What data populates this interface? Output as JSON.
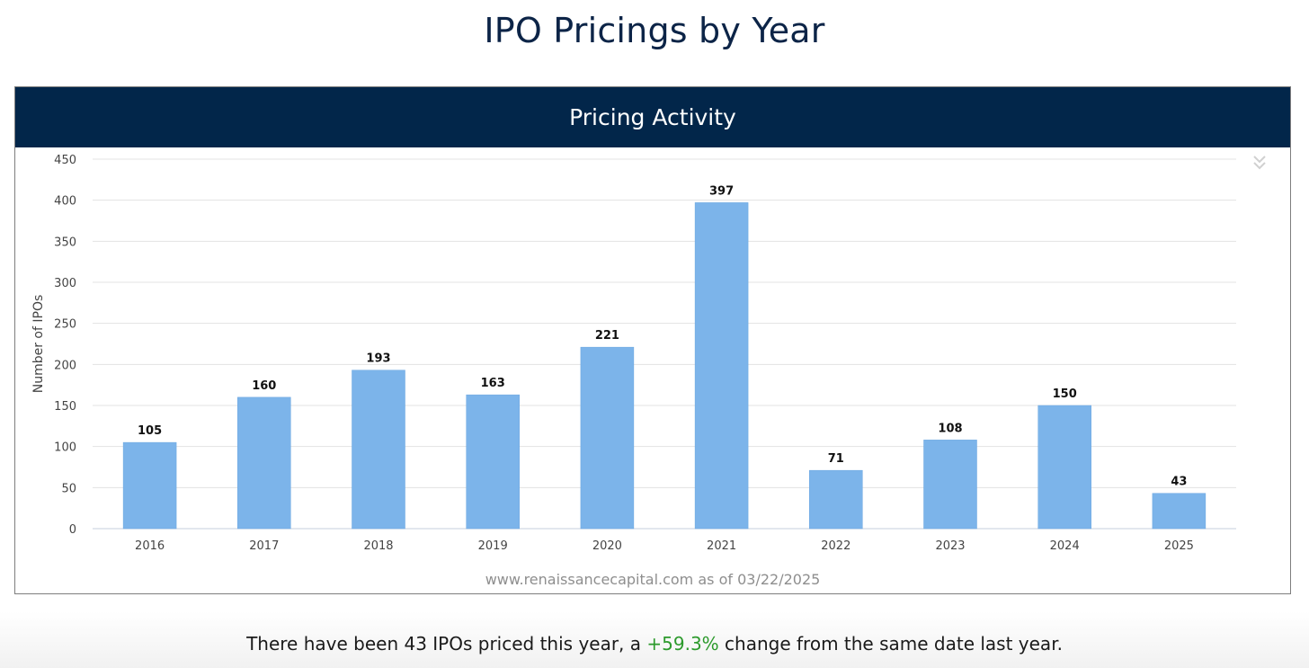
{
  "page": {
    "title": "IPO Pricings by Year"
  },
  "chart_header": {
    "title": "Pricing Activity"
  },
  "chart_data": {
    "type": "bar",
    "title": "Pricing Activity",
    "categories": [
      "2016",
      "2017",
      "2018",
      "2019",
      "2020",
      "2021",
      "2022",
      "2023",
      "2024",
      "2025"
    ],
    "values": [
      105,
      160,
      193,
      163,
      221,
      397,
      71,
      108,
      150,
      43
    ],
    "data_labels": [
      "105",
      "160",
      "193",
      "163",
      "221",
      "397",
      "71",
      "108",
      "150",
      "43"
    ],
    "xlabel": "",
    "ylabel": "Number of IPOs",
    "ylim": [
      0,
      450
    ],
    "yticks": [
      0,
      50,
      100,
      150,
      200,
      250,
      300,
      350,
      400,
      450
    ],
    "grid": true,
    "legend": "none",
    "bar_color": "#7cb4ea"
  },
  "credit": {
    "text": "www.renaissancecapital.com as of 03/22/2025"
  },
  "summary": {
    "prefix": "There have been 43 IPOs priced this year, a ",
    "change": "+59.3%",
    "suffix": " change from the same date last year.",
    "change_color": "#2c9a2c"
  },
  "colors": {
    "title": "#0c2447",
    "header_bg": "#02264a",
    "header_text": "#ffffff",
    "bar": "#7cb4ea",
    "grid": "#e3e3e3",
    "axis_text": "#444444"
  },
  "icons": {
    "chart_menu": "double-chevron-down-icon"
  }
}
